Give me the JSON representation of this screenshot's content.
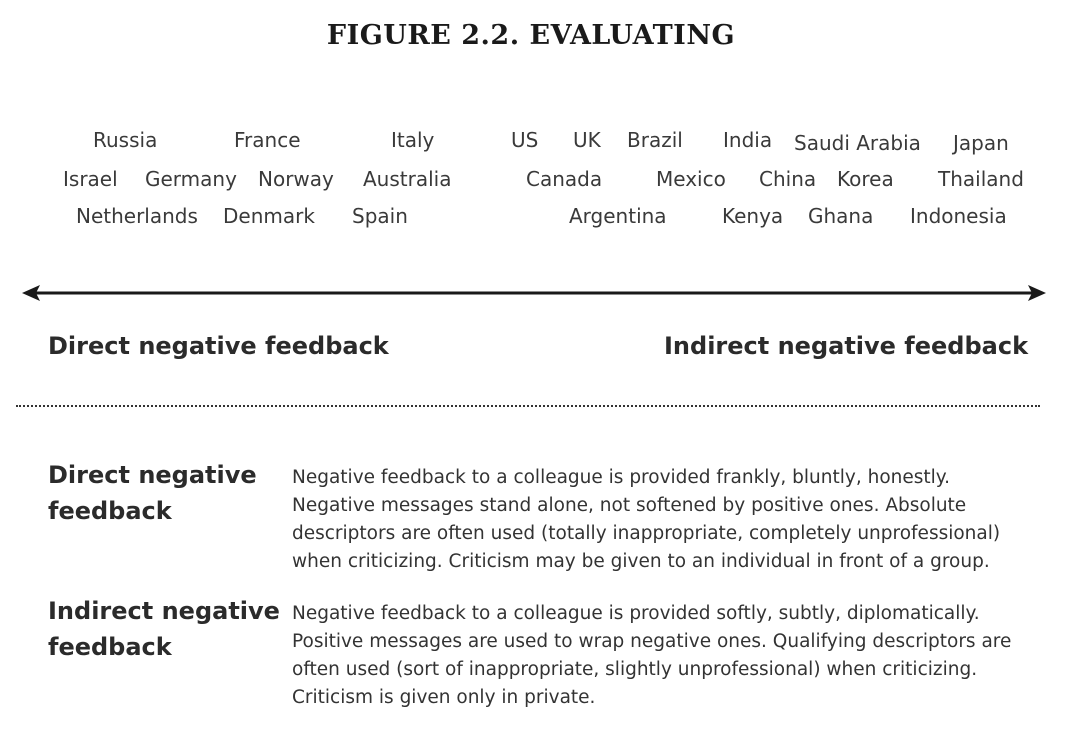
{
  "title": "FIGURE 2.2. EVALUATING",
  "scale": {
    "countries": [
      "Russia",
      "France",
      "Italy",
      "US",
      "UK",
      "Brazil",
      "India",
      "Saudi Arabia",
      "Japan",
      "Israel",
      "Germany",
      "Norway",
      "Australia",
      "Canada",
      "Mexico",
      "China",
      "Korea",
      "Thailand",
      "Netherlands",
      "Denmark",
      "Spain",
      "Argentina",
      "Kenya",
      "Ghana",
      "Indonesia"
    ],
    "left_label": "Direct negative feedback",
    "right_label": "Indirect negative feedback"
  },
  "definitions": [
    {
      "term_lines": [
        "Direct negative",
        "feedback"
      ],
      "description_lines": [
        "Negative feedback to a colleague is provided frankly, bluntly, honestly.",
        "Negative messages stand alone, not softened by positive ones. Absolute",
        "descriptors are often used (totally inappropriate, completely unprofessional)",
        "when criticizing. Criticism may be given to an individual in front of a group."
      ]
    },
    {
      "term_lines": [
        "Indirect negative",
        "feedback"
      ],
      "description_lines": [
        "Negative feedback to a colleague is provided softly, subtly, diplomatically.",
        "Positive messages are used to wrap negative ones. Qualifying descriptors are",
        "often used (sort of inappropriate, slightly unprofessional) when criticizing.",
        "Criticism is given only in private."
      ]
    }
  ]
}
